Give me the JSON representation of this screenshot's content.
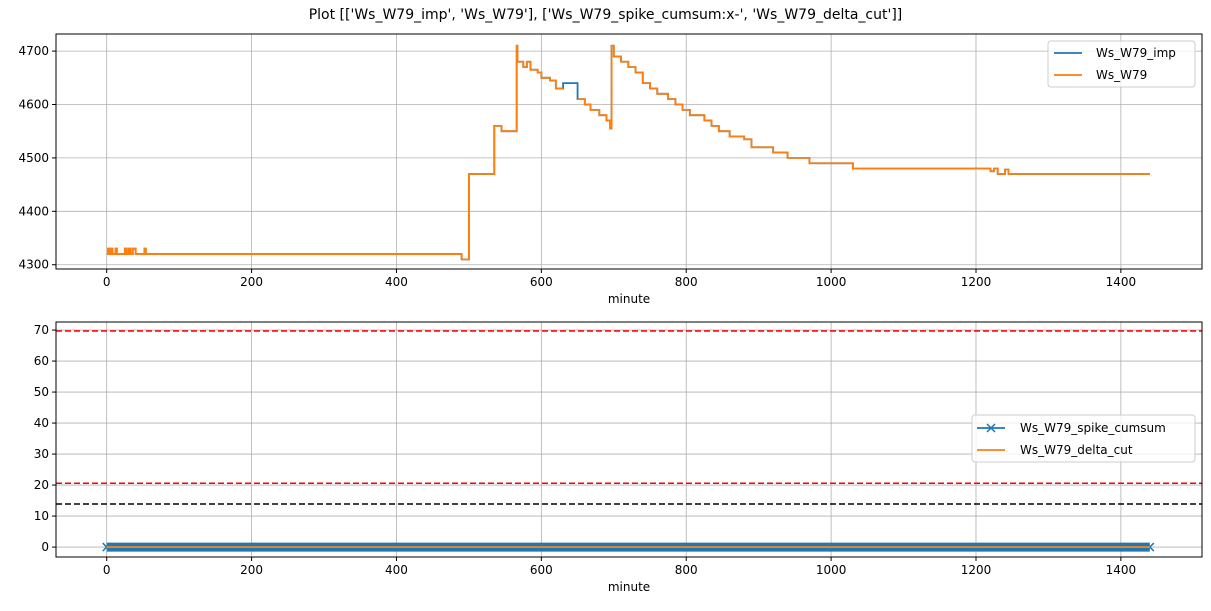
{
  "title": "Plot [['Ws_W79_imp', 'Ws_W79'], ['Ws_W79_spike_cumsum:x-', 'Ws_W79_delta_cut']]",
  "colors": {
    "blue": "#1f77b4",
    "orange": "#ff7f0e",
    "red": "#ff0000",
    "black": "#000000",
    "grid": "#b0b0b0"
  },
  "chart_data": [
    {
      "type": "line",
      "drawstyle": "steps",
      "xlabel": "minute",
      "ylabel": "",
      "xlim": [
        -70,
        1512
      ],
      "ylim": [
        4292,
        4732
      ],
      "xticks": [
        0,
        200,
        400,
        600,
        800,
        1000,
        1200,
        1400
      ],
      "yticks": [
        4300,
        4400,
        4500,
        4600,
        4700
      ],
      "grid": true,
      "legend": "top-right",
      "series": [
        {
          "name": "Ws_W79_imp",
          "color": "#1f77b4",
          "points": [
            [
              0,
              4320
            ],
            [
              2,
              4330
            ],
            [
              4,
              4320
            ],
            [
              6,
              4330
            ],
            [
              8,
              4320
            ],
            [
              12,
              4330
            ],
            [
              14,
              4320
            ],
            [
              25,
              4330
            ],
            [
              27,
              4320
            ],
            [
              30,
              4330
            ],
            [
              33,
              4320
            ],
            [
              36,
              4330
            ],
            [
              40,
              4320
            ],
            [
              52,
              4330
            ],
            [
              54,
              4320
            ],
            [
              490,
              4310
            ],
            [
              500,
              4470
            ],
            [
              535,
              4560
            ],
            [
              545,
              4550
            ],
            [
              566,
              4710
            ],
            [
              567,
              4680
            ],
            [
              575,
              4670
            ],
            [
              580,
              4680
            ],
            [
              585,
              4665
            ],
            [
              595,
              4660
            ],
            [
              600,
              4650
            ],
            [
              612,
              4645
            ],
            [
              620,
              4630
            ],
            [
              630,
              4640
            ],
            [
              650,
              4610
            ],
            [
              660,
              4600
            ],
            [
              668,
              4590
            ],
            [
              680,
              4580
            ],
            [
              690,
              4570
            ],
            [
              695,
              4555
            ],
            [
              697,
              4710
            ],
            [
              700,
              4690
            ],
            [
              710,
              4680
            ],
            [
              720,
              4670
            ],
            [
              730,
              4660
            ],
            [
              740,
              4640
            ],
            [
              750,
              4630
            ],
            [
              760,
              4620
            ],
            [
              775,
              4610
            ],
            [
              785,
              4600
            ],
            [
              795,
              4590
            ],
            [
              805,
              4580
            ],
            [
              825,
              4570
            ],
            [
              835,
              4560
            ],
            [
              845,
              4550
            ],
            [
              860,
              4540
            ],
            [
              880,
              4535
            ],
            [
              890,
              4520
            ],
            [
              920,
              4510
            ],
            [
              940,
              4500
            ],
            [
              970,
              4490
            ],
            [
              1030,
              4480
            ],
            [
              1220,
              4475
            ],
            [
              1225,
              4480
            ],
            [
              1230,
              4470
            ],
            [
              1240,
              4478
            ],
            [
              1245,
              4470
            ],
            [
              1440,
              4470
            ]
          ]
        },
        {
          "name": "Ws_W79",
          "color": "#ff7f0e",
          "points": [
            [
              0,
              4320
            ],
            [
              2,
              4330
            ],
            [
              4,
              4320
            ],
            [
              6,
              4330
            ],
            [
              8,
              4320
            ],
            [
              12,
              4330
            ],
            [
              14,
              4320
            ],
            [
              25,
              4330
            ],
            [
              27,
              4320
            ],
            [
              30,
              4330
            ],
            [
              33,
              4320
            ],
            [
              36,
              4330
            ],
            [
              40,
              4320
            ],
            [
              52,
              4330
            ],
            [
              54,
              4320
            ],
            [
              490,
              4310
            ],
            [
              500,
              4470
            ],
            [
              535,
              4560
            ],
            [
              545,
              4550
            ],
            [
              566,
              4710
            ],
            [
              567,
              4680
            ],
            [
              575,
              4670
            ],
            [
              580,
              4680
            ],
            [
              585,
              4665
            ],
            [
              595,
              4660
            ],
            [
              600,
              4650
            ],
            [
              612,
              4645
            ],
            [
              620,
              4630
            ],
            [
              630,
              null
            ],
            [
              650,
              4610
            ],
            [
              660,
              4600
            ],
            [
              668,
              4590
            ],
            [
              680,
              4580
            ],
            [
              690,
              4570
            ],
            [
              695,
              4555
            ],
            [
              697,
              4710
            ],
            [
              700,
              4690
            ],
            [
              710,
              4680
            ],
            [
              720,
              4670
            ],
            [
              730,
              4660
            ],
            [
              740,
              4640
            ],
            [
              750,
              4630
            ],
            [
              760,
              4620
            ],
            [
              775,
              4610
            ],
            [
              785,
              4600
            ],
            [
              795,
              4590
            ],
            [
              805,
              4580
            ],
            [
              825,
              4570
            ],
            [
              835,
              4560
            ],
            [
              845,
              4550
            ],
            [
              860,
              4540
            ],
            [
              880,
              4535
            ],
            [
              890,
              4520
            ],
            [
              920,
              4510
            ],
            [
              940,
              4500
            ],
            [
              970,
              4490
            ],
            [
              1030,
              4480
            ],
            [
              1220,
              4475
            ],
            [
              1225,
              4480
            ],
            [
              1230,
              4470
            ],
            [
              1240,
              4478
            ],
            [
              1245,
              4470
            ],
            [
              1440,
              4470
            ]
          ]
        }
      ]
    },
    {
      "type": "line",
      "xlabel": "minute",
      "ylabel": "",
      "xlim": [
        -70,
        1512
      ],
      "ylim": [
        -3.2,
        72.6
      ],
      "xticks": [
        0,
        200,
        400,
        600,
        800,
        1000,
        1200,
        1400
      ],
      "yticks": [
        0,
        10,
        20,
        30,
        40,
        50,
        60,
        70
      ],
      "grid": true,
      "legend": "center-right",
      "series": [
        {
          "name": "Ws_W79_spike_cumsum",
          "color": "#1f77b4",
          "marker": "x",
          "x_range": [
            0,
            1440
          ],
          "value": 0
        },
        {
          "name": "Ws_W79_delta_cut",
          "color": "#ff7f0e",
          "x_range": [
            0,
            1440
          ],
          "value": 0
        }
      ],
      "hlines": [
        {
          "y": 69.7,
          "color": "#ff0000",
          "style": "dashed"
        },
        {
          "y": 20.6,
          "color": "#ff0000",
          "style": "dashed"
        },
        {
          "y": 13.9,
          "color": "#000000",
          "style": "dashed"
        }
      ]
    }
  ]
}
